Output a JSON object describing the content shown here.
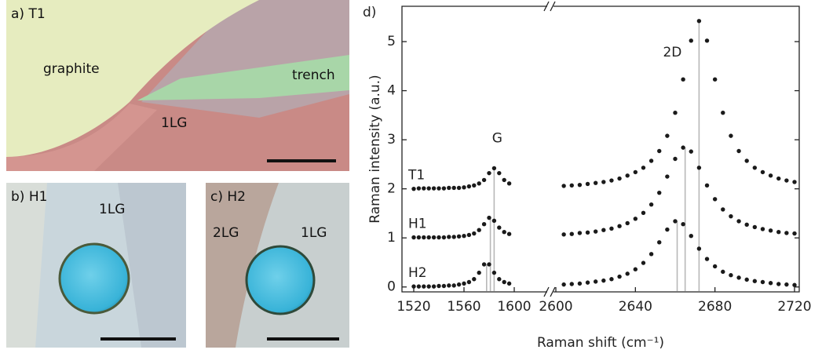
{
  "panels": [
    {
      "label": "a) T1",
      "texts": [
        "graphite",
        "trench",
        "1LG"
      ]
    },
    {
      "label": "b) H1",
      "texts": [
        "1LG"
      ]
    },
    {
      "label": "c) H2",
      "texts": [
        "2LG",
        "1LG"
      ]
    }
  ],
  "chart_data": {
    "type": "scatter",
    "panel_label": "d)",
    "xlabel": "Raman shift (cm⁻¹)",
    "ylabel": "Raman intensity (a.u.)",
    "ylim": [
      -0.1,
      5.72
    ],
    "yticks": [
      0,
      1,
      2,
      3,
      4,
      5
    ],
    "x_segments": [
      {
        "xlim": [
          1520,
          1600
        ],
        "xticks": [
          1520,
          1560,
          1600
        ]
      },
      {
        "xlim": [
          2600,
          2720
        ],
        "xticks": [
          2600,
          2640,
          2680,
          2720
        ]
      }
    ],
    "x": [
      1520,
      1524,
      1528,
      1532,
      1536,
      1540,
      1544,
      1548,
      1552,
      1556,
      1560,
      1564,
      1568,
      1572,
      1576,
      1580,
      1584,
      1588,
      1592,
      1596,
      2604,
      2608,
      2612,
      2616,
      2620,
      2624,
      2628,
      2632,
      2636,
      2640,
      2644,
      2648,
      2652,
      2656,
      2660,
      2664,
      2668,
      2672,
      2676,
      2680,
      2684,
      2688,
      2692,
      2696,
      2700,
      2704,
      2708,
      2712,
      2716,
      2720
    ],
    "series": [
      {
        "name": "T1",
        "color": "#1a1a1a",
        "values": [
          2.0,
          2.01,
          2.01,
          2.01,
          2.01,
          2.01,
          2.01,
          2.02,
          2.02,
          2.02,
          2.03,
          2.05,
          2.07,
          2.11,
          2.18,
          2.32,
          2.42,
          2.32,
          2.18,
          2.11,
          2.06,
          2.07,
          2.08,
          2.1,
          2.12,
          2.14,
          2.17,
          2.21,
          2.27,
          2.34,
          2.43,
          2.57,
          2.77,
          3.08,
          3.55,
          4.23,
          5.02,
          5.42,
          5.02,
          4.23,
          3.55,
          3.08,
          2.77,
          2.57,
          2.43,
          2.34,
          2.27,
          2.21,
          2.17,
          2.14
        ]
      },
      {
        "name": "H1",
        "color": "#1a1a1a",
        "values": [
          1.01,
          1.01,
          1.01,
          1.01,
          1.01,
          1.01,
          1.01,
          1.02,
          1.02,
          1.03,
          1.04,
          1.06,
          1.09,
          1.16,
          1.28,
          1.41,
          1.35,
          1.21,
          1.12,
          1.08,
          1.07,
          1.08,
          1.1,
          1.11,
          1.13,
          1.16,
          1.19,
          1.24,
          1.3,
          1.39,
          1.51,
          1.68,
          1.92,
          2.25,
          2.61,
          2.84,
          2.76,
          2.43,
          2.07,
          1.79,
          1.58,
          1.44,
          1.34,
          1.27,
          1.22,
          1.18,
          1.15,
          1.12,
          1.1,
          1.09
        ]
      },
      {
        "name": "H2",
        "color": "#1a1a1a",
        "values": [
          0.01,
          0.01,
          0.01,
          0.01,
          0.01,
          0.02,
          0.02,
          0.03,
          0.03,
          0.05,
          0.07,
          0.1,
          0.16,
          0.29,
          0.46,
          0.46,
          0.29,
          0.16,
          0.1,
          0.07,
          0.05,
          0.06,
          0.07,
          0.09,
          0.11,
          0.13,
          0.16,
          0.21,
          0.27,
          0.36,
          0.49,
          0.67,
          0.91,
          1.17,
          1.34,
          1.28,
          1.04,
          0.78,
          0.57,
          0.42,
          0.31,
          0.24,
          0.19,
          0.15,
          0.12,
          0.1,
          0.08,
          0.06,
          0.05,
          0.04
        ]
      }
    ],
    "annotations": [
      "G",
      "2D"
    ],
    "peak_lines": {
      "color": "#b8b8b8",
      "x": [
        1584,
        1581,
        1578,
        2672,
        2665,
        2661
      ],
      "y": [
        2.42,
        1.41,
        0.46,
        5.42,
        2.84,
        1.34
      ]
    }
  }
}
